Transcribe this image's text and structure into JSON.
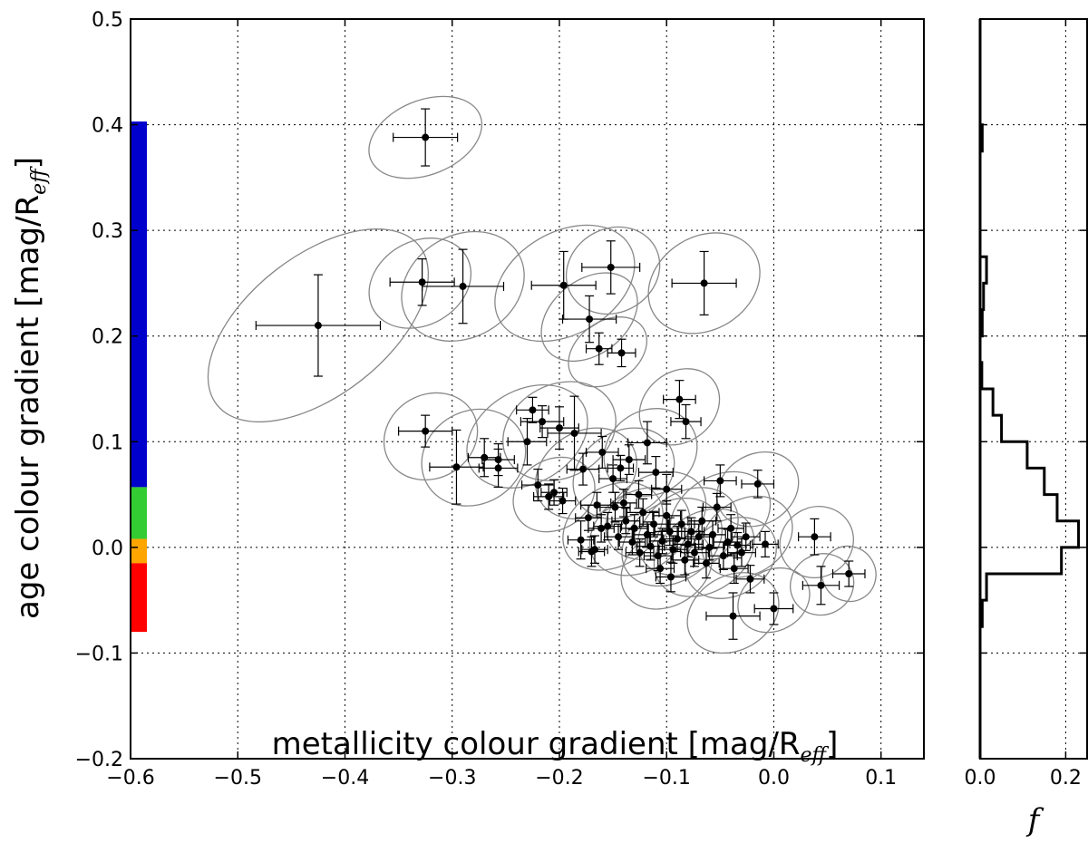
{
  "chart_data": [
    {
      "type": "scatter",
      "xlabel": "metallicity colour gradient [mag/R",
      "xlabel_sub": "eff",
      "xlabel_close": "]",
      "ylabel": "age colour gradient [mag/R",
      "ylabel_sub": "eff",
      "ylabel_close": "]",
      "xlim": [
        -0.6,
        0.14
      ],
      "ylim": [
        -0.2,
        0.5
      ],
      "xticks": [
        "−0.6",
        "−0.5",
        "−0.4",
        "−0.3",
        "−0.2",
        "−0.1",
        "0.0",
        "0.1"
      ],
      "xtick_values": [
        -0.6,
        -0.5,
        -0.4,
        -0.3,
        -0.2,
        -0.1,
        0.0,
        0.1
      ],
      "yticks": [
        "−0.2",
        "−0.1",
        "0.0",
        "0.1",
        "0.2",
        "0.3",
        "0.4",
        "0.5"
      ],
      "ytick_values": [
        -0.2,
        -0.1,
        0.0,
        0.1,
        0.2,
        0.3,
        0.4,
        0.5
      ],
      "grid": true,
      "marker_color": "#000000",
      "ellipse_color": "#888888",
      "color_bar": [
        {
          "from": 0.057,
          "to": 0.403,
          "color": "#0000cc"
        },
        {
          "from": 0.008,
          "to": 0.057,
          "color": "#33cc33"
        },
        {
          "from": -0.015,
          "to": 0.008,
          "color": "#ffa500"
        },
        {
          "from": -0.08,
          "to": -0.015,
          "color": "#ff0000"
        }
      ],
      "points": [
        {
          "x": -0.325,
          "y": 0.388,
          "xerr": 0.03,
          "yerr": 0.027
        },
        {
          "x": -0.425,
          "y": 0.21,
          "xerr": 0.058,
          "yerr": 0.048
        },
        {
          "x": -0.328,
          "y": 0.251,
          "xerr": 0.03,
          "yerr": 0.022
        },
        {
          "x": -0.29,
          "y": 0.247,
          "xerr": 0.038,
          "yerr": 0.035
        },
        {
          "x": -0.196,
          "y": 0.248,
          "xerr": 0.03,
          "yerr": 0.032
        },
        {
          "x": -0.152,
          "y": 0.265,
          "xerr": 0.027,
          "yerr": 0.025
        },
        {
          "x": -0.065,
          "y": 0.25,
          "xerr": 0.03,
          "yerr": 0.03
        },
        {
          "x": -0.172,
          "y": 0.216,
          "xerr": 0.025,
          "yerr": 0.022
        },
        {
          "x": -0.163,
          "y": 0.188,
          "xerr": 0.012,
          "yerr": 0.015
        },
        {
          "x": -0.142,
          "y": 0.184,
          "xerr": 0.013,
          "yerr": 0.013
        },
        {
          "x": -0.088,
          "y": 0.14,
          "xerr": 0.015,
          "yerr": 0.018
        },
        {
          "x": -0.082,
          "y": 0.119,
          "xerr": 0.014,
          "yerr": 0.016
        },
        {
          "x": -0.325,
          "y": 0.11,
          "xerr": 0.025,
          "yerr": 0.015
        },
        {
          "x": -0.296,
          "y": 0.076,
          "xerr": 0.025,
          "yerr": 0.035
        },
        {
          "x": -0.27,
          "y": 0.085,
          "xerr": 0.015,
          "yerr": 0.018
        },
        {
          "x": -0.257,
          "y": 0.083,
          "xerr": 0.015,
          "yerr": 0.015
        },
        {
          "x": -0.257,
          "y": 0.075,
          "xerr": 0.018,
          "yerr": 0.018
        },
        {
          "x": -0.23,
          "y": 0.1,
          "xerr": 0.018,
          "yerr": 0.022
        },
        {
          "x": -0.225,
          "y": 0.13,
          "xerr": 0.015,
          "yerr": 0.012
        },
        {
          "x": -0.216,
          "y": 0.119,
          "xerr": 0.02,
          "yerr": 0.015
        },
        {
          "x": -0.2,
          "y": 0.113,
          "xerr": 0.018,
          "yerr": 0.02
        },
        {
          "x": -0.186,
          "y": 0.108,
          "xerr": 0.025,
          "yerr": 0.035
        },
        {
          "x": -0.178,
          "y": 0.074,
          "xerr": 0.015,
          "yerr": 0.015
        },
        {
          "x": -0.22,
          "y": 0.059,
          "xerr": 0.015,
          "yerr": 0.015
        },
        {
          "x": -0.205,
          "y": 0.052,
          "xerr": 0.012,
          "yerr": 0.012
        },
        {
          "x": -0.197,
          "y": 0.044,
          "xerr": 0.012,
          "yerr": 0.012
        },
        {
          "x": -0.21,
          "y": 0.048,
          "xerr": 0.014,
          "yerr": 0.012
        },
        {
          "x": -0.16,
          "y": 0.09,
          "xerr": 0.015,
          "yerr": 0.015
        },
        {
          "x": -0.15,
          "y": 0.065,
          "xerr": 0.013,
          "yerr": 0.013
        },
        {
          "x": -0.143,
          "y": 0.075,
          "xerr": 0.012,
          "yerr": 0.012
        },
        {
          "x": -0.135,
          "y": 0.083,
          "xerr": 0.015,
          "yerr": 0.014
        },
        {
          "x": -0.118,
          "y": 0.099,
          "xerr": 0.018,
          "yerr": 0.02
        },
        {
          "x": -0.11,
          "y": 0.071,
          "xerr": 0.016,
          "yerr": 0.015
        },
        {
          "x": -0.1,
          "y": 0.055,
          "xerr": 0.014,
          "yerr": 0.014
        },
        {
          "x": -0.165,
          "y": 0.04,
          "xerr": 0.015,
          "yerr": 0.012
        },
        {
          "x": -0.173,
          "y": 0.028,
          "xerr": 0.012,
          "yerr": 0.012
        },
        {
          "x": -0.161,
          "y": 0.018,
          "xerr": 0.012,
          "yerr": 0.013
        },
        {
          "x": -0.18,
          "y": 0.007,
          "xerr": 0.012,
          "yerr": 0.018
        },
        {
          "x": -0.17,
          "y": -0.004,
          "xerr": 0.012,
          "yerr": 0.014
        },
        {
          "x": -0.167,
          "y": -0.002,
          "xerr": 0.012,
          "yerr": 0.013
        },
        {
          "x": -0.148,
          "y": 0.038,
          "xerr": 0.014,
          "yerr": 0.014
        },
        {
          "x": -0.14,
          "y": 0.042,
          "xerr": 0.012,
          "yerr": 0.013
        },
        {
          "x": -0.138,
          "y": 0.025,
          "xerr": 0.013,
          "yerr": 0.012
        },
        {
          "x": -0.13,
          "y": 0.018,
          "xerr": 0.013,
          "yerr": 0.013
        },
        {
          "x": -0.126,
          "y": 0.05,
          "xerr": 0.012,
          "yerr": 0.013
        },
        {
          "x": -0.122,
          "y": 0.033,
          "xerr": 0.015,
          "yerr": 0.013
        },
        {
          "x": -0.118,
          "y": 0.012,
          "xerr": 0.013,
          "yerr": 0.012
        },
        {
          "x": -0.115,
          "y": 0.001,
          "xerr": 0.013,
          "yerr": 0.013
        },
        {
          "x": -0.112,
          "y": 0.022,
          "xerr": 0.013,
          "yerr": 0.012
        },
        {
          "x": -0.108,
          "y": -0.008,
          "xerr": 0.013,
          "yerr": 0.014
        },
        {
          "x": -0.104,
          "y": 0.006,
          "xerr": 0.012,
          "yerr": 0.012
        },
        {
          "x": -0.1,
          "y": 0.03,
          "xerr": 0.013,
          "yerr": 0.014
        },
        {
          "x": -0.097,
          "y": 0.015,
          "xerr": 0.014,
          "yerr": 0.013
        },
        {
          "x": -0.094,
          "y": -0.002,
          "xerr": 0.013,
          "yerr": 0.013
        },
        {
          "x": -0.09,
          "y": 0.008,
          "xerr": 0.013,
          "yerr": 0.012
        },
        {
          "x": -0.086,
          "y": 0.022,
          "xerr": 0.012,
          "yerr": 0.013
        },
        {
          "x": -0.083,
          "y": -0.012,
          "xerr": 0.013,
          "yerr": 0.014
        },
        {
          "x": -0.08,
          "y": 0.003,
          "xerr": 0.014,
          "yerr": 0.012
        },
        {
          "x": -0.077,
          "y": 0.015,
          "xerr": 0.012,
          "yerr": 0.013
        },
        {
          "x": -0.074,
          "y": -0.005,
          "xerr": 0.013,
          "yerr": 0.013
        },
        {
          "x": -0.07,
          "y": 0.01,
          "xerr": 0.013,
          "yerr": 0.012
        },
        {
          "x": -0.067,
          "y": 0.025,
          "xerr": 0.013,
          "yerr": 0.013
        },
        {
          "x": -0.063,
          "y": -0.015,
          "xerr": 0.012,
          "yerr": 0.014
        },
        {
          "x": -0.06,
          "y": 0.0,
          "xerr": 0.013,
          "yerr": 0.012
        },
        {
          "x": -0.057,
          "y": 0.012,
          "xerr": 0.012,
          "yerr": 0.013
        },
        {
          "x": -0.053,
          "y": 0.038,
          "xerr": 0.013,
          "yerr": 0.013
        },
        {
          "x": -0.05,
          "y": 0.063,
          "xerr": 0.015,
          "yerr": 0.015
        },
        {
          "x": -0.047,
          "y": -0.008,
          "xerr": 0.013,
          "yerr": 0.013
        },
        {
          "x": -0.043,
          "y": 0.005,
          "xerr": 0.013,
          "yerr": 0.012
        },
        {
          "x": -0.04,
          "y": 0.018,
          "xerr": 0.012,
          "yerr": 0.013
        },
        {
          "x": -0.037,
          "y": -0.02,
          "xerr": 0.013,
          "yerr": 0.014
        },
        {
          "x": -0.034,
          "y": 0.002,
          "xerr": 0.012,
          "yerr": 0.012
        },
        {
          "x": -0.03,
          "y": -0.005,
          "xerr": 0.013,
          "yerr": 0.013
        },
        {
          "x": -0.026,
          "y": 0.01,
          "xerr": 0.013,
          "yerr": 0.013
        },
        {
          "x": -0.022,
          "y": -0.03,
          "xerr": 0.013,
          "yerr": 0.013
        },
        {
          "x": -0.015,
          "y": 0.06,
          "xerr": 0.015,
          "yerr": 0.013
        },
        {
          "x": -0.008,
          "y": 0.003,
          "xerr": 0.012,
          "yerr": 0.012
        },
        {
          "x": -0.125,
          "y": -0.005,
          "xerr": 0.013,
          "yerr": 0.013
        },
        {
          "x": -0.132,
          "y": 0.005,
          "xerr": 0.012,
          "yerr": 0.012
        },
        {
          "x": -0.145,
          "y": 0.01,
          "xerr": 0.013,
          "yerr": 0.012
        },
        {
          "x": -0.155,
          "y": 0.02,
          "xerr": 0.013,
          "yerr": 0.013
        },
        {
          "x": -0.106,
          "y": -0.02,
          "xerr": 0.013,
          "yerr": 0.014
        },
        {
          "x": -0.096,
          "y": -0.028,
          "xerr": 0.014,
          "yerr": 0.014
        },
        {
          "x": -0.038,
          "y": -0.065,
          "xerr": 0.025,
          "yerr": 0.022
        },
        {
          "x": 0.0,
          "y": -0.058,
          "xerr": 0.018,
          "yerr": 0.015
        },
        {
          "x": 0.038,
          "y": 0.01,
          "xerr": 0.015,
          "yerr": 0.017
        },
        {
          "x": 0.044,
          "y": -0.036,
          "xerr": 0.017,
          "yerr": 0.018
        },
        {
          "x": 0.07,
          "y": -0.025,
          "xerr": 0.015,
          "yerr": 0.012
        }
      ],
      "ellipses": [
        {
          "cx": -0.325,
          "cy": 0.388,
          "rx": 0.055,
          "ry": 0.016,
          "angle": -22
        },
        {
          "cx": -0.425,
          "cy": 0.21,
          "rx": 0.12,
          "ry": 0.03,
          "angle": -38
        },
        {
          "cx": -0.33,
          "cy": 0.25,
          "rx": 0.05,
          "ry": 0.018,
          "angle": -30
        },
        {
          "cx": -0.29,
          "cy": 0.247,
          "rx": 0.06,
          "ry": 0.022,
          "angle": -30
        },
        {
          "cx": -0.195,
          "cy": 0.25,
          "rx": 0.07,
          "ry": 0.022,
          "angle": -30
        },
        {
          "cx": -0.15,
          "cy": 0.262,
          "rx": 0.045,
          "ry": 0.018,
          "angle": -30
        },
        {
          "cx": -0.065,
          "cy": 0.25,
          "rx": 0.055,
          "ry": 0.02,
          "angle": -32
        },
        {
          "cx": -0.172,
          "cy": 0.218,
          "rx": 0.05,
          "ry": 0.016,
          "angle": -38
        },
        {
          "cx": -0.155,
          "cy": 0.185,
          "rx": 0.04,
          "ry": 0.013,
          "angle": -35
        },
        {
          "cx": -0.088,
          "cy": 0.133,
          "rx": 0.04,
          "ry": 0.015,
          "angle": -38
        },
        {
          "cx": -0.32,
          "cy": 0.105,
          "rx": 0.045,
          "ry": 0.018,
          "angle": -30
        },
        {
          "cx": -0.28,
          "cy": 0.085,
          "rx": 0.05,
          "ry": 0.02,
          "angle": -30
        },
        {
          "cx": -0.23,
          "cy": 0.105,
          "rx": 0.06,
          "ry": 0.02,
          "angle": -30
        },
        {
          "cx": -0.2,
          "cy": 0.11,
          "rx": 0.055,
          "ry": 0.02,
          "angle": -28
        },
        {
          "cx": -0.175,
          "cy": 0.07,
          "rx": 0.05,
          "ry": 0.018,
          "angle": -32
        },
        {
          "cx": -0.205,
          "cy": 0.05,
          "rx": 0.04,
          "ry": 0.015,
          "angle": -32
        },
        {
          "cx": -0.14,
          "cy": 0.07,
          "rx": 0.05,
          "ry": 0.018,
          "angle": -32
        },
        {
          "cx": -0.115,
          "cy": 0.09,
          "rx": 0.045,
          "ry": 0.018,
          "angle": -32
        },
        {
          "cx": -0.15,
          "cy": 0.02,
          "rx": 0.05,
          "ry": 0.017,
          "angle": -32
        },
        {
          "cx": -0.125,
          "cy": 0.015,
          "rx": 0.05,
          "ry": 0.017,
          "angle": -32
        },
        {
          "cx": -0.11,
          "cy": 0.03,
          "rx": 0.05,
          "ry": 0.017,
          "angle": -32
        },
        {
          "cx": -0.095,
          "cy": 0.005,
          "rx": 0.05,
          "ry": 0.017,
          "angle": -32
        },
        {
          "cx": -0.08,
          "cy": 0.015,
          "rx": 0.05,
          "ry": 0.017,
          "angle": -32
        },
        {
          "cx": -0.065,
          "cy": -0.005,
          "rx": 0.05,
          "ry": 0.017,
          "angle": -32
        },
        {
          "cx": -0.05,
          "cy": 0.03,
          "rx": 0.05,
          "ry": 0.017,
          "angle": -32
        },
        {
          "cx": -0.04,
          "cy": -0.01,
          "rx": 0.045,
          "ry": 0.016,
          "angle": -32
        },
        {
          "cx": -0.025,
          "cy": 0.01,
          "rx": 0.045,
          "ry": 0.016,
          "angle": -32
        },
        {
          "cx": -0.015,
          "cy": 0.055,
          "rx": 0.04,
          "ry": 0.015,
          "angle": -32
        },
        {
          "cx": -0.1,
          "cy": -0.02,
          "rx": 0.045,
          "ry": 0.016,
          "angle": -32
        },
        {
          "cx": -0.038,
          "cy": -0.062,
          "rx": 0.045,
          "ry": 0.016,
          "angle": -30
        },
        {
          "cx": 0.0,
          "cy": -0.05,
          "rx": 0.035,
          "ry": 0.013,
          "angle": -30
        },
        {
          "cx": 0.04,
          "cy": 0.005,
          "rx": 0.035,
          "ry": 0.015,
          "angle": -32
        },
        {
          "cx": 0.045,
          "cy": -0.035,
          "rx": 0.03,
          "ry": 0.013,
          "angle": -30
        },
        {
          "cx": 0.07,
          "cy": -0.025,
          "rx": 0.025,
          "ry": 0.012,
          "angle": -30
        }
      ]
    },
    {
      "type": "histogram",
      "orientation": "horizontal",
      "xlabel": "f",
      "xlim": [
        0.0,
        0.25
      ],
      "xticks": [
        "0.0",
        "0.2"
      ],
      "xtick_values": [
        0.0,
        0.2
      ],
      "ylim": [
        -0.2,
        0.5
      ],
      "bin_width": 0.025,
      "bins": [
        {
          "from": -0.075,
          "to": -0.05,
          "value": 0.005
        },
        {
          "from": -0.05,
          "to": -0.025,
          "value": 0.015
        },
        {
          "from": -0.025,
          "to": 0.0,
          "value": 0.19
        },
        {
          "from": 0.0,
          "to": 0.025,
          "value": 0.23
        },
        {
          "from": 0.025,
          "to": 0.05,
          "value": 0.18
        },
        {
          "from": 0.05,
          "to": 0.075,
          "value": 0.15
        },
        {
          "from": 0.075,
          "to": 0.1,
          "value": 0.11
        },
        {
          "from": 0.1,
          "to": 0.125,
          "value": 0.05
        },
        {
          "from": 0.125,
          "to": 0.15,
          "value": 0.03
        },
        {
          "from": 0.15,
          "to": 0.175,
          "value": 0.004
        },
        {
          "from": 0.175,
          "to": 0.2,
          "value": 0.0
        },
        {
          "from": 0.2,
          "to": 0.225,
          "value": 0.005
        },
        {
          "from": 0.225,
          "to": 0.25,
          "value": 0.008
        },
        {
          "from": 0.25,
          "to": 0.275,
          "value": 0.015
        },
        {
          "from": 0.275,
          "to": 0.375,
          "value": 0.0
        },
        {
          "from": 0.375,
          "to": 0.4,
          "value": 0.005
        }
      ]
    }
  ]
}
